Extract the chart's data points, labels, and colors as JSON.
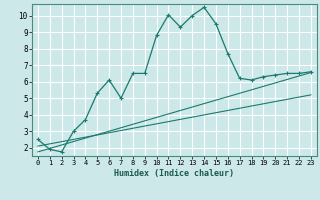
{
  "xlabel": "Humidex (Indice chaleur)",
  "bg_color": "#cce8e8",
  "grid_color": "#ffffff",
  "line_color": "#1a7a6e",
  "xlim": [
    -0.5,
    23.5
  ],
  "ylim": [
    1.5,
    10.7
  ],
  "yticks": [
    2,
    3,
    4,
    5,
    6,
    7,
    8,
    9,
    10
  ],
  "xticks": [
    0,
    1,
    2,
    3,
    4,
    5,
    6,
    7,
    8,
    9,
    10,
    11,
    12,
    13,
    14,
    15,
    16,
    17,
    18,
    19,
    20,
    21,
    22,
    23
  ],
  "curve1_x": [
    0,
    1,
    2,
    3,
    4,
    5,
    6,
    7,
    8,
    9,
    10,
    11,
    12,
    13,
    14,
    15,
    16,
    17,
    18,
    19,
    20,
    21,
    22,
    23
  ],
  "curve1_y": [
    2.5,
    1.9,
    1.75,
    3.0,
    3.7,
    5.3,
    6.1,
    5.0,
    6.5,
    6.5,
    8.8,
    10.05,
    9.3,
    10.0,
    10.5,
    9.5,
    7.7,
    6.2,
    6.1,
    6.3,
    6.4,
    6.5,
    6.5,
    6.6
  ],
  "line1_x": [
    0,
    23
  ],
  "line1_y": [
    2.1,
    5.2
  ],
  "line2_x": [
    0,
    23
  ],
  "line2_y": [
    1.75,
    6.55
  ]
}
